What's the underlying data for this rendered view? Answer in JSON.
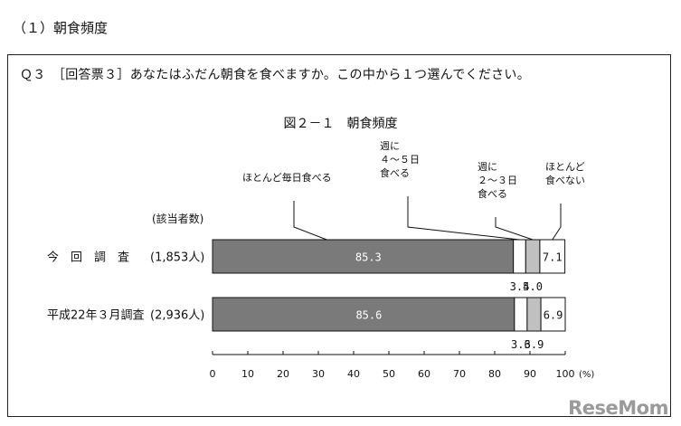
{
  "section_title": "（１）朝食頻度",
  "question": "Ｑ３　［回答票３］あなたはふだん朝食を食べますか。この中から１つ選んでください。",
  "chart_data": {
    "type": "bar",
    "orientation": "horizontal-stacked-100",
    "title": "図２－１　朝食頻度",
    "count_header": "(該当者数)",
    "unit": "(%)",
    "xlim": [
      0,
      100
    ],
    "xticks": [
      "0",
      "10",
      "20",
      "30",
      "40",
      "50",
      "60",
      "70",
      "80",
      "90",
      "100"
    ],
    "segments": [
      {
        "name_lines": [
          "ほとんど毎日食べる"
        ],
        "color": "#7a7a7a"
      },
      {
        "name_lines": [
          "週に",
          "４～５日",
          "食べる"
        ],
        "color": "#ffffff"
      },
      {
        "name_lines": [
          "週に",
          "２～３日",
          "食べる"
        ],
        "color": "#c0c0c0"
      },
      {
        "name_lines": [
          "ほとんど",
          "食べない"
        ],
        "color": "#ffffff"
      }
    ],
    "rows": [
      {
        "label": "今　回　調　査",
        "count": "(1,853人)",
        "values": [
          85.3,
          3.5,
          4.0,
          7.1
        ],
        "labels": [
          "85.3",
          "3.5",
          "4.0",
          "7.1"
        ]
      },
      {
        "label": "平成22年３月調査",
        "count": "(2,936人)",
        "values": [
          85.6,
          3.6,
          3.9,
          6.9
        ],
        "labels": [
          "85.6",
          "3.6",
          "3.9",
          "6.9"
        ]
      }
    ]
  },
  "watermark": "ReseMom"
}
